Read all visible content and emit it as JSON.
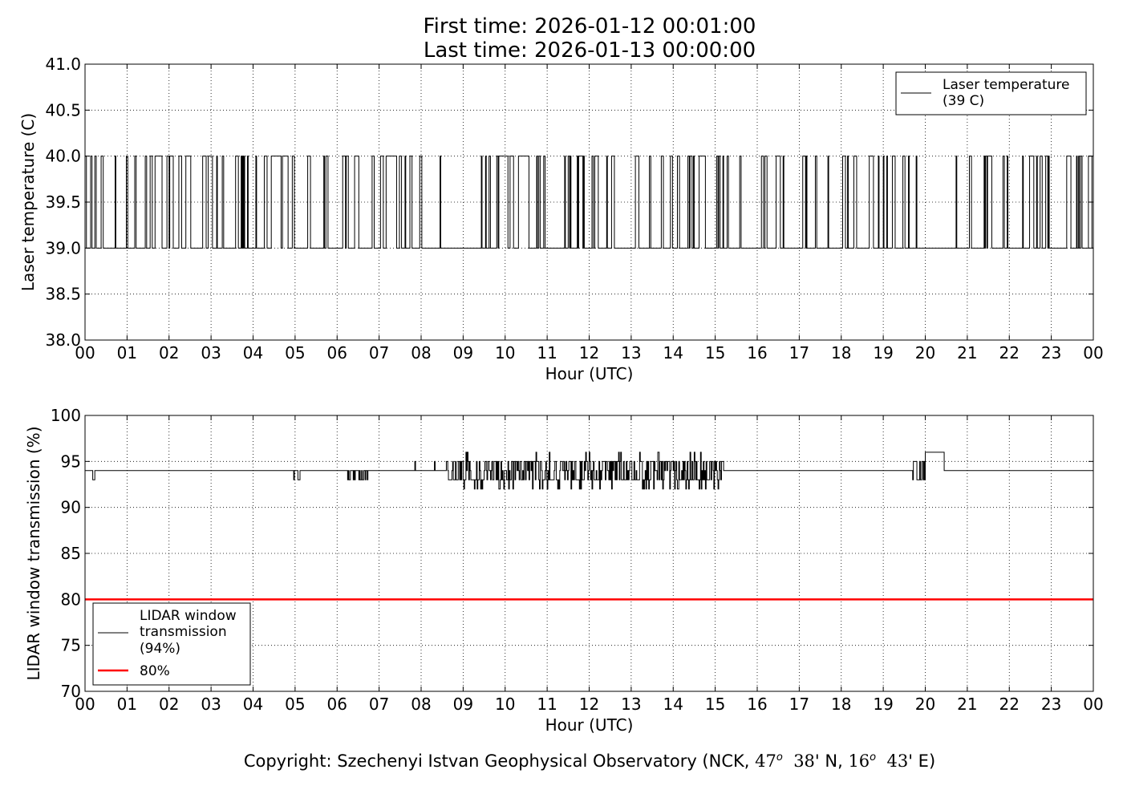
{
  "header": {
    "first_time": "First time: 2026-01-12 00:01:00",
    "last_time": "Last time: 2026-01-13 00:00:00"
  },
  "footer": {
    "prefix": "Copyright: Szechenyi Istvan Geophysical Observatory (NCK, ",
    "lat_deg": "47",
    "lat_min": "38",
    "lat_suffix": "' N, ",
    "lon_deg": "16",
    "lon_min": "43",
    "lon_suffix": "' E)",
    "degree_mark": "o"
  },
  "chart_data": [
    {
      "type": "line",
      "xlabel": "Hour (UTC)",
      "ylabel": "Laser temperature (C)",
      "xlim": [
        0,
        24
      ],
      "ylim": [
        38.0,
        41.0
      ],
      "x_ticks": [
        "00",
        "01",
        "02",
        "03",
        "04",
        "05",
        "06",
        "07",
        "08",
        "09",
        "10",
        "11",
        "12",
        "13",
        "14",
        "15",
        "16",
        "17",
        "18",
        "19",
        "20",
        "21",
        "22",
        "23",
        "00"
      ],
      "y_ticks": [
        "38.0",
        "38.5",
        "39.0",
        "39.5",
        "40.0",
        "40.5",
        "41.0"
      ],
      "grid": true,
      "legend_position": "top-right",
      "series": [
        {
          "name": "Laser temperature",
          "legend_value": "(39 C)",
          "color": "#000000",
          "sampling_minutes": 1,
          "levels": [
            39.0,
            40.0
          ],
          "behavior": "toggles between 39.0 and 40.0 throughout the day; stays at 39.0 from ~19.8 h to ~20.6 h",
          "steady_intervals": [
            {
              "x": [
                19.8,
                20.6
              ],
              "y": 39.0
            }
          ]
        }
      ]
    },
    {
      "type": "line",
      "xlabel": "Hour (UTC)",
      "ylabel": "LIDAR window transmission (%)",
      "xlim": [
        0,
        24
      ],
      "ylim": [
        70,
        100
      ],
      "x_ticks": [
        "00",
        "01",
        "02",
        "03",
        "04",
        "05",
        "06",
        "07",
        "08",
        "09",
        "10",
        "11",
        "12",
        "13",
        "14",
        "15",
        "16",
        "17",
        "18",
        "19",
        "20",
        "21",
        "22",
        "23",
        "00"
      ],
      "y_ticks": [
        "70",
        "75",
        "80",
        "85",
        "90",
        "95",
        "100"
      ],
      "grid": true,
      "legend_position": "bottom-left",
      "series": [
        {
          "name": "LIDAR window transmission",
          "legend_value": "(94%)",
          "color": "#000000",
          "baseline": 94,
          "behavior": "mostly 94; noisy between 92 and 97 from ~8.6 h to ~15.2 h; brief rise to 96 around 20.0-20.5 h",
          "noisy_interval": {
            "x": [
              8.6,
              15.2
            ],
            "min": 92,
            "max": 97
          },
          "plateau": {
            "x": [
              20.0,
              20.45
            ],
            "y": 96
          }
        },
        {
          "name": "80%",
          "color": "#ff0000",
          "constant": 80
        }
      ]
    }
  ]
}
